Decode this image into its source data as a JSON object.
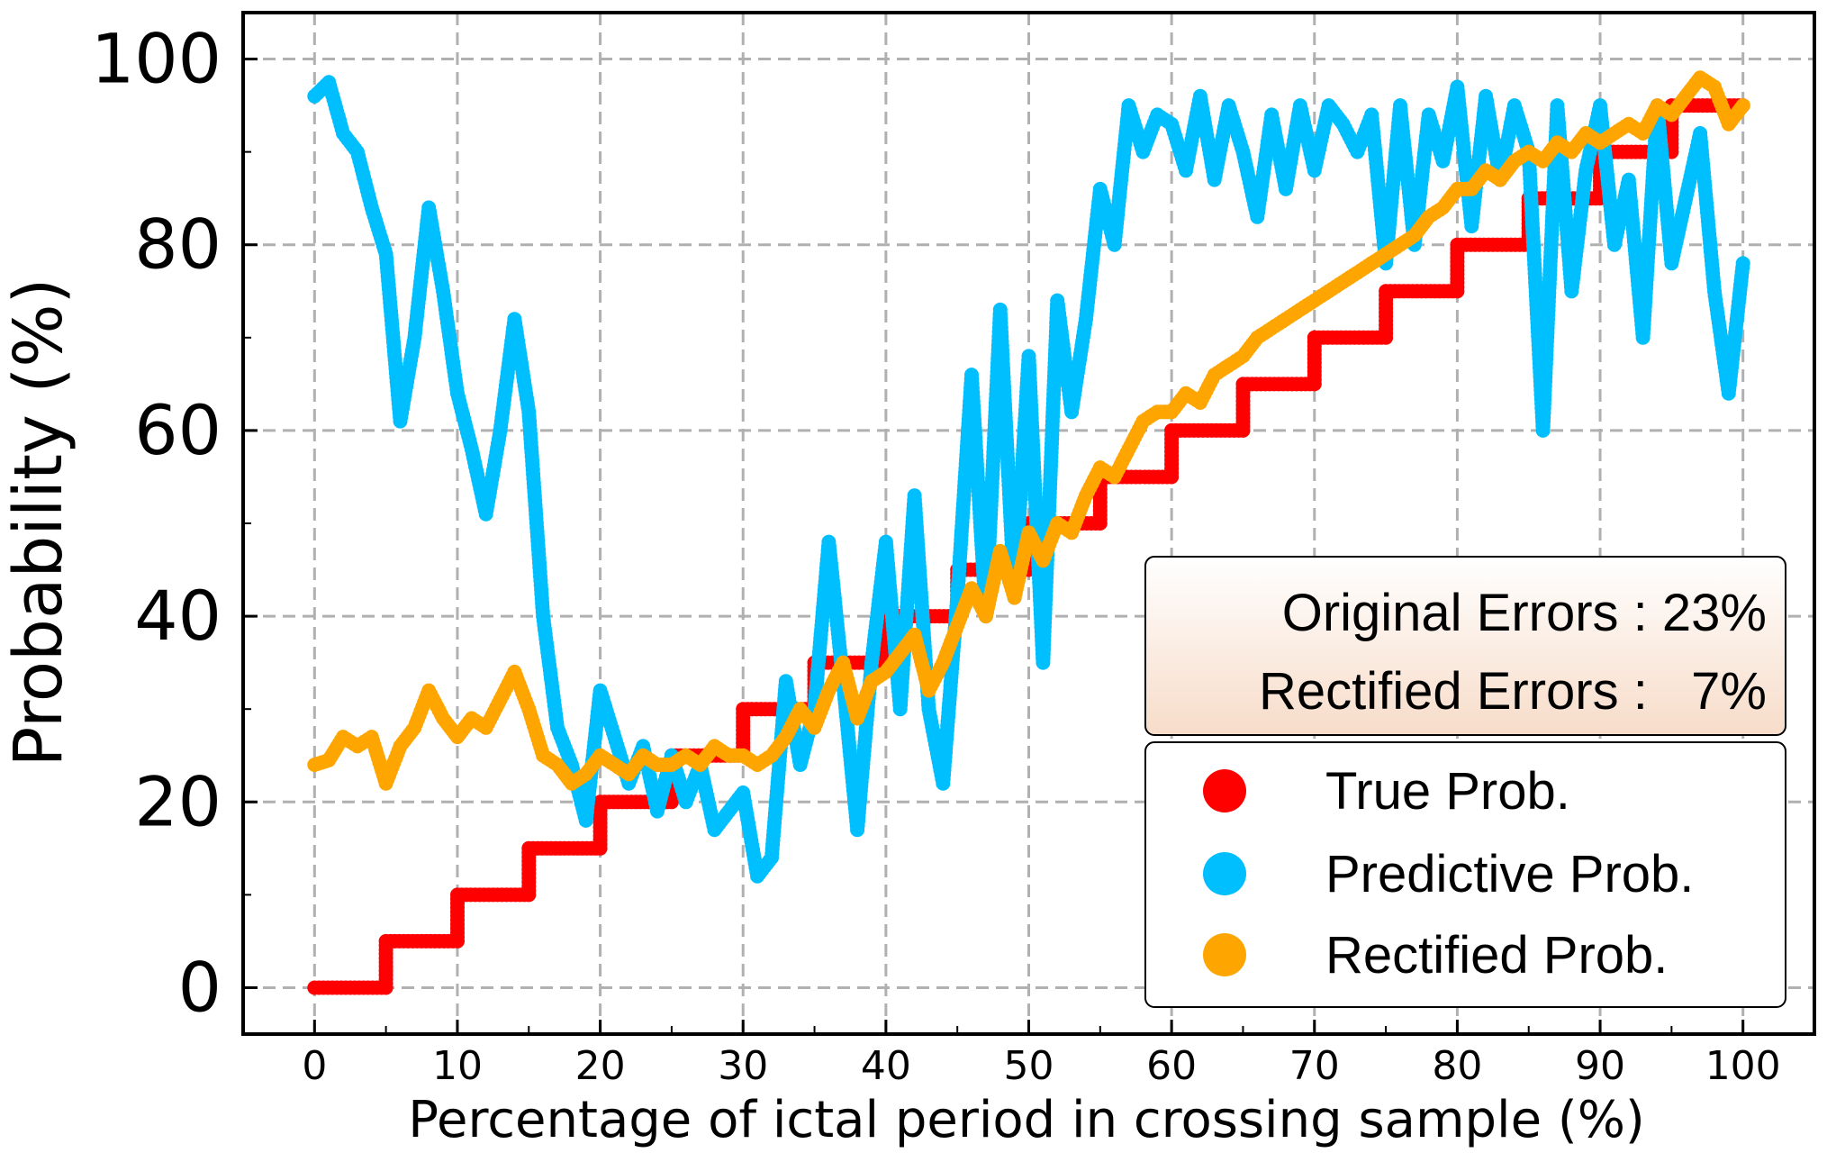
{
  "chart_data": {
    "type": "scatter",
    "title": "",
    "xlabel": "Percentage of ictal period in crossing sample (%)",
    "ylabel": "Probability (%)",
    "xlim": [
      -5,
      105
    ],
    "ylim": [
      -5,
      105
    ],
    "x_ticks": [
      "0",
      "10",
      "20",
      "30",
      "40",
      "50",
      "60",
      "70",
      "80",
      "90",
      "100"
    ],
    "y_ticks": [
      "0",
      "20",
      "40",
      "60",
      "80",
      "100"
    ],
    "grid": true,
    "legend_position": "bottom-right",
    "colors": {
      "true": "#ff0000",
      "predictive": "#00bfff",
      "rectified": "#ffa500"
    },
    "series": [
      {
        "name": "True Prob.",
        "key": "true",
        "points": [
          [
            0,
            0
          ],
          [
            5,
            0
          ],
          [
            5,
            5
          ],
          [
            10,
            5
          ],
          [
            10,
            10
          ],
          [
            15,
            10
          ],
          [
            15,
            15
          ],
          [
            20,
            15
          ],
          [
            20,
            20
          ],
          [
            25,
            20
          ],
          [
            25,
            25
          ],
          [
            30,
            25
          ],
          [
            30,
            30
          ],
          [
            35,
            30
          ],
          [
            35,
            35
          ],
          [
            40,
            35
          ],
          [
            40,
            40
          ],
          [
            45,
            40
          ],
          [
            45,
            45
          ],
          [
            50,
            45
          ],
          [
            50,
            50
          ],
          [
            55,
            50
          ],
          [
            55,
            55
          ],
          [
            60,
            55
          ],
          [
            60,
            60
          ],
          [
            65,
            60
          ],
          [
            65,
            65
          ],
          [
            70,
            65
          ],
          [
            70,
            70
          ],
          [
            75,
            70
          ],
          [
            75,
            75
          ],
          [
            80,
            75
          ],
          [
            80,
            80
          ],
          [
            85,
            80
          ],
          [
            85,
            85
          ],
          [
            90,
            85
          ],
          [
            90,
            90
          ],
          [
            95,
            90
          ],
          [
            95,
            95
          ],
          [
            100,
            95
          ]
        ]
      },
      {
        "name": "Predictive Prob.",
        "key": "predictive",
        "points": [
          [
            0,
            96
          ],
          [
            1,
            97.5
          ],
          [
            2,
            92
          ],
          [
            3,
            90
          ],
          [
            4,
            84
          ],
          [
            5,
            79
          ],
          [
            6,
            61
          ],
          [
            7,
            70
          ],
          [
            8,
            84
          ],
          [
            9,
            75
          ],
          [
            10,
            64
          ],
          [
            11,
            58
          ],
          [
            12,
            51
          ],
          [
            13,
            60
          ],
          [
            14,
            72
          ],
          [
            15,
            62
          ],
          [
            16,
            40
          ],
          [
            17,
            28
          ],
          [
            18,
            24
          ],
          [
            19,
            18
          ],
          [
            20,
            32
          ],
          [
            21,
            27
          ],
          [
            22,
            22
          ],
          [
            23,
            26
          ],
          [
            24,
            19
          ],
          [
            25,
            25
          ],
          [
            26,
            20
          ],
          [
            27,
            24
          ],
          [
            28,
            17
          ],
          [
            29,
            19
          ],
          [
            30,
            21
          ],
          [
            31,
            12
          ],
          [
            32,
            14
          ],
          [
            33,
            33
          ],
          [
            34,
            24
          ],
          [
            35,
            30
          ],
          [
            36,
            48
          ],
          [
            37,
            33
          ],
          [
            38,
            17
          ],
          [
            39,
            35
          ],
          [
            40,
            48
          ],
          [
            41,
            30
          ],
          [
            42,
            53
          ],
          [
            43,
            30
          ],
          [
            44,
            22
          ],
          [
            45,
            42
          ],
          [
            46,
            66
          ],
          [
            47,
            40
          ],
          [
            48,
            73
          ],
          [
            49,
            42
          ],
          [
            50,
            68
          ],
          [
            51,
            35
          ],
          [
            52,
            74
          ],
          [
            53,
            62
          ],
          [
            54,
            72
          ],
          [
            55,
            86
          ],
          [
            56,
            80
          ],
          [
            57,
            95
          ],
          [
            58,
            90
          ],
          [
            59,
            94
          ],
          [
            60,
            93
          ],
          [
            61,
            88
          ],
          [
            62,
            96
          ],
          [
            63,
            87
          ],
          [
            64,
            95
          ],
          [
            65,
            90
          ],
          [
            66,
            83
          ],
          [
            67,
            94
          ],
          [
            68,
            86
          ],
          [
            69,
            95
          ],
          [
            70,
            88
          ],
          [
            71,
            95
          ],
          [
            72,
            93
          ],
          [
            73,
            90
          ],
          [
            74,
            94
          ],
          [
            75,
            78
          ],
          [
            76,
            95
          ],
          [
            77,
            80
          ],
          [
            78,
            94
          ],
          [
            79,
            89
          ],
          [
            80,
            97
          ],
          [
            81,
            82
          ],
          [
            82,
            96
          ],
          [
            83,
            87
          ],
          [
            84,
            95
          ],
          [
            85,
            90
          ],
          [
            86,
            60
          ],
          [
            87,
            95
          ],
          [
            88,
            75
          ],
          [
            89,
            88
          ],
          [
            90,
            95
          ],
          [
            91,
            80
          ],
          [
            92,
            87
          ],
          [
            93,
            70
          ],
          [
            94,
            95
          ],
          [
            95,
            78
          ],
          [
            96,
            85
          ],
          [
            97,
            92
          ],
          [
            98,
            75
          ],
          [
            99,
            64
          ],
          [
            100,
            78
          ]
        ]
      },
      {
        "name": "Rectified Prob.",
        "key": "rectified",
        "points": [
          [
            0,
            24
          ],
          [
            1,
            24.5
          ],
          [
            2,
            27
          ],
          [
            3,
            26
          ],
          [
            4,
            27
          ],
          [
            5,
            22
          ],
          [
            6,
            26
          ],
          [
            7,
            28
          ],
          [
            8,
            32
          ],
          [
            9,
            29
          ],
          [
            10,
            27
          ],
          [
            11,
            29
          ],
          [
            12,
            28
          ],
          [
            13,
            31
          ],
          [
            14,
            34
          ],
          [
            15,
            30
          ],
          [
            16,
            25
          ],
          [
            17,
            24
          ],
          [
            18,
            22
          ],
          [
            19,
            23
          ],
          [
            20,
            25
          ],
          [
            21,
            24
          ],
          [
            22,
            23
          ],
          [
            23,
            25
          ],
          [
            24,
            24
          ],
          [
            25,
            24
          ],
          [
            26,
            25
          ],
          [
            27,
            24
          ],
          [
            28,
            26
          ],
          [
            29,
            25
          ],
          [
            30,
            25
          ],
          [
            31,
            24
          ],
          [
            32,
            25
          ],
          [
            33,
            27
          ],
          [
            34,
            30
          ],
          [
            35,
            28
          ],
          [
            36,
            32
          ],
          [
            37,
            35
          ],
          [
            38,
            29
          ],
          [
            39,
            33
          ],
          [
            40,
            34
          ],
          [
            41,
            36
          ],
          [
            42,
            38
          ],
          [
            43,
            32
          ],
          [
            44,
            35
          ],
          [
            45,
            39
          ],
          [
            46,
            43
          ],
          [
            47,
            40
          ],
          [
            48,
            47
          ],
          [
            49,
            42
          ],
          [
            50,
            49
          ],
          [
            51,
            46
          ],
          [
            52,
            50
          ],
          [
            53,
            49
          ],
          [
            54,
            53
          ],
          [
            55,
            56
          ],
          [
            56,
            55
          ],
          [
            57,
            58
          ],
          [
            58,
            61
          ],
          [
            59,
            62
          ],
          [
            60,
            62
          ],
          [
            61,
            64
          ],
          [
            62,
            63
          ],
          [
            63,
            66
          ],
          [
            64,
            67
          ],
          [
            65,
            68
          ],
          [
            66,
            70
          ],
          [
            67,
            71
          ],
          [
            68,
            72
          ],
          [
            69,
            73
          ],
          [
            70,
            74
          ],
          [
            71,
            75
          ],
          [
            72,
            76
          ],
          [
            73,
            77
          ],
          [
            74,
            78
          ],
          [
            75,
            79
          ],
          [
            76,
            80
          ],
          [
            77,
            81
          ],
          [
            78,
            83
          ],
          [
            79,
            84
          ],
          [
            80,
            86
          ],
          [
            81,
            86
          ],
          [
            82,
            88
          ],
          [
            83,
            87
          ],
          [
            84,
            89
          ],
          [
            85,
            90
          ],
          [
            86,
            89
          ],
          [
            87,
            91
          ],
          [
            88,
            90
          ],
          [
            89,
            92
          ],
          [
            90,
            91
          ],
          [
            91,
            92
          ],
          [
            92,
            93
          ],
          [
            93,
            92
          ],
          [
            94,
            95
          ],
          [
            95,
            94
          ],
          [
            96,
            96
          ],
          [
            97,
            98
          ],
          [
            98,
            97
          ],
          [
            99,
            93
          ],
          [
            100,
            95
          ]
        ]
      }
    ],
    "annotation": {
      "line1_label": "Original Errors : ",
      "line1_value": "23%",
      "line2_label": "Rectified Errors :   ",
      "line2_value": "7%"
    }
  }
}
